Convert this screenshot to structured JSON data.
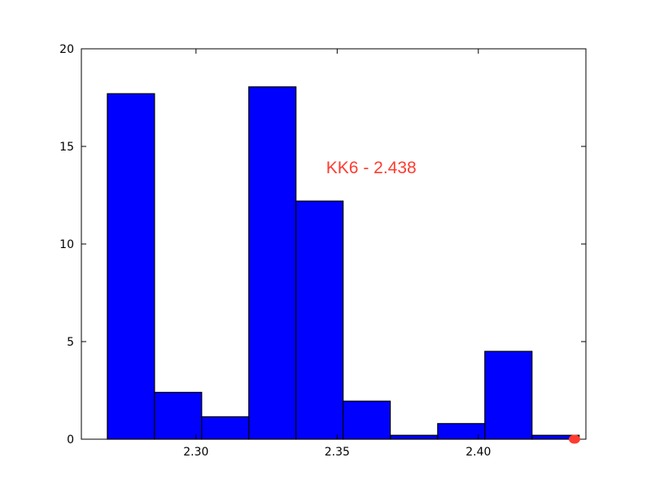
{
  "chart_data": {
    "type": "bar",
    "title": "",
    "xlabel": "",
    "ylabel": "",
    "xlim": [
      2.2594,
      2.4381
    ],
    "ylim": [
      0,
      20
    ],
    "grid": false,
    "x_ticks": [
      2.3,
      2.35,
      2.4
    ],
    "x_tick_labels": [
      "2.30",
      "2.35",
      "2.40"
    ],
    "y_ticks": [
      0,
      5,
      10,
      15,
      20
    ],
    "y_tick_labels": [
      "0",
      "5",
      "10",
      "15",
      "20"
    ],
    "bin_width": 0.01671,
    "bin_starts": [
      2.2686,
      2.2853,
      2.302,
      2.3187,
      2.3354,
      2.3521,
      2.3689,
      2.3856,
      2.4023,
      2.419
    ],
    "values": [
      17.7,
      2.4,
      1.15,
      18.05,
      12.2,
      1.95,
      0.2,
      0.8,
      4.5,
      0.2
    ],
    "bar_color": "#0000ff",
    "edge_color": "#000000",
    "annotation": {
      "text": "KK6 - 2.438",
      "color": "#ff3b30",
      "anchor_x": 2.3461,
      "anchor_y": 14.0
    },
    "marker": {
      "x": 2.438,
      "y": 0,
      "color": "#ff3b30"
    }
  }
}
